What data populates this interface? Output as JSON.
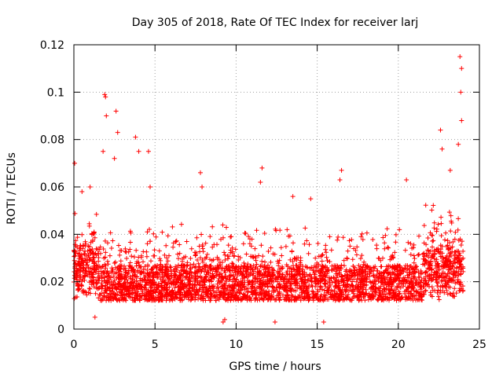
{
  "chart_data": {
    "type": "scatter",
    "title": "Day 305 of 2018, Rate Of TEC Index for receiver larj",
    "xlabel": "GPS time / hours",
    "ylabel": "ROTI / TECUs",
    "xlim": [
      0,
      25
    ],
    "ylim": [
      0,
      0.12
    ],
    "xticks": [
      0,
      5,
      10,
      15,
      20,
      25
    ],
    "xtick_labels": [
      "0",
      "5",
      "10",
      "15",
      "20",
      "25"
    ],
    "yticks": [
      0,
      0.02,
      0.04,
      0.06,
      0.08,
      0.1,
      0.12
    ],
    "ytick_labels": [
      "0",
      "0.02",
      "0.04",
      "0.06",
      "0.08",
      "0.1",
      "0.12"
    ],
    "grid": true,
    "legend": "none",
    "marker": "plus",
    "color": "#ff0000",
    "x_range_of_data": [
      0,
      24
    ],
    "typical_y_band": [
      0.008,
      0.035
    ],
    "notable_points": [
      {
        "x": 0.05,
        "y": 0.07
      },
      {
        "x": 0.5,
        "y": 0.058
      },
      {
        "x": 1.0,
        "y": 0.06
      },
      {
        "x": 1.9,
        "y": 0.099
      },
      {
        "x": 1.95,
        "y": 0.098
      },
      {
        "x": 2.0,
        "y": 0.09
      },
      {
        "x": 1.8,
        "y": 0.075
      },
      {
        "x": 2.6,
        "y": 0.092
      },
      {
        "x": 2.7,
        "y": 0.083
      },
      {
        "x": 2.5,
        "y": 0.072
      },
      {
        "x": 3.8,
        "y": 0.081
      },
      {
        "x": 4.0,
        "y": 0.075
      },
      {
        "x": 4.6,
        "y": 0.075
      },
      {
        "x": 4.7,
        "y": 0.06
      },
      {
        "x": 7.8,
        "y": 0.066
      },
      {
        "x": 7.9,
        "y": 0.06
      },
      {
        "x": 11.6,
        "y": 0.068
      },
      {
        "x": 11.5,
        "y": 0.062
      },
      {
        "x": 13.5,
        "y": 0.056
      },
      {
        "x": 14.6,
        "y": 0.055
      },
      {
        "x": 16.5,
        "y": 0.067
      },
      {
        "x": 16.4,
        "y": 0.063
      },
      {
        "x": 20.5,
        "y": 0.063
      },
      {
        "x": 22.6,
        "y": 0.084
      },
      {
        "x": 22.7,
        "y": 0.076
      },
      {
        "x": 23.2,
        "y": 0.067
      },
      {
        "x": 23.8,
        "y": 0.115
      },
      {
        "x": 23.9,
        "y": 0.11
      },
      {
        "x": 23.85,
        "y": 0.1
      },
      {
        "x": 23.9,
        "y": 0.088
      },
      {
        "x": 23.7,
        "y": 0.078
      },
      {
        "x": 9.2,
        "y": 0.003
      },
      {
        "x": 9.3,
        "y": 0.004
      },
      {
        "x": 12.4,
        "y": 0.003
      },
      {
        "x": 15.4,
        "y": 0.003
      },
      {
        "x": 1.3,
        "y": 0.005
      }
    ]
  }
}
